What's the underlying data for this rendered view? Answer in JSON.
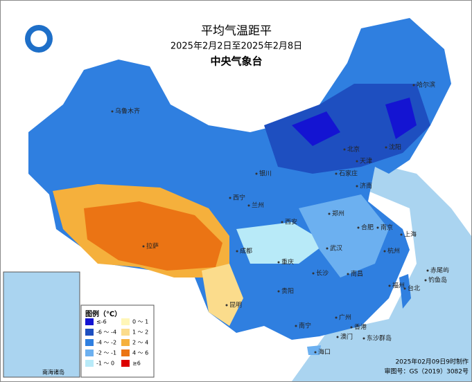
{
  "header": {
    "title": "平均气温距平",
    "subtitle": "2025年2月2日至2025年2月8日",
    "org": "中央气象台"
  },
  "map": {
    "cities": [
      "乌鲁木齐",
      "拉萨",
      "西宁",
      "兰州",
      "银川",
      "北京",
      "天津",
      "石家庄",
      "济南",
      "西安",
      "郑州",
      "成都",
      "重庆",
      "武汉",
      "合肥",
      "南京",
      "上海",
      "杭州",
      "长沙",
      "南昌",
      "福州",
      "贵阳",
      "昆明",
      "南宁",
      "广州",
      "香港",
      "澳门",
      "海口",
      "台北",
      "哈尔滨",
      "沈阳",
      "钓鱼岛",
      "赤尾屿",
      "东沙群岛"
    ],
    "inset": "南海诸岛"
  },
  "legend": {
    "title": "图例（℃）",
    "items": [
      {
        "label": "≤-6",
        "color": "#1414d2"
      },
      {
        "label": "-6 ～ -4",
        "color": "#1e4fc0"
      },
      {
        "label": "-4 ～ -2",
        "color": "#2f7fe0"
      },
      {
        "label": "-2 ～ -1",
        "color": "#6cb0f0"
      },
      {
        "label": "-1 ～ 0",
        "color": "#b8eaf8"
      },
      {
        "label": "0 ～ 1",
        "color": "#fff6b8"
      },
      {
        "label": "1 ～ 2",
        "color": "#fbdc8c"
      },
      {
        "label": "2 ～ 4",
        "color": "#f5b03c"
      },
      {
        "label": "4 ～ 6",
        "color": "#eb7414"
      },
      {
        "label": "≥6",
        "color": "#dc0000"
      }
    ]
  },
  "footer": {
    "made": "2025年02月09日9时制作",
    "approval": "审图号：GS（2019）3082号"
  }
}
